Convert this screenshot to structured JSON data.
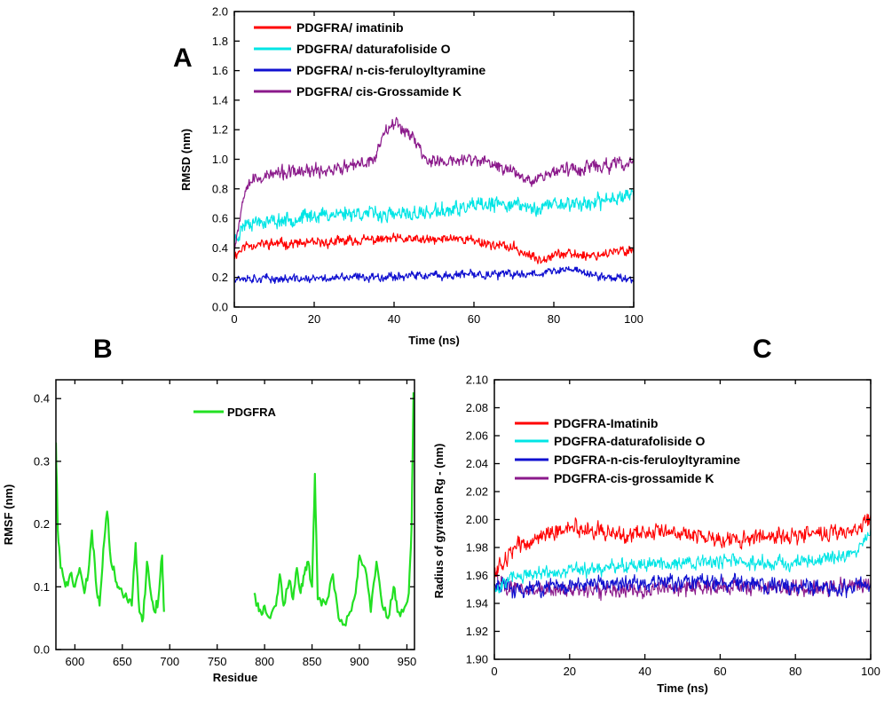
{
  "figure": {
    "panel_labels": [
      "A",
      "B",
      "C"
    ]
  },
  "chart_data": [
    {
      "panel": "A",
      "type": "line",
      "title": "",
      "xlabel": "Time (ns)",
      "ylabel": "RMSD (nm)",
      "xlim": [
        0,
        100
      ],
      "ylim": [
        0,
        2.0
      ],
      "xticks": [
        0,
        20,
        40,
        60,
        80,
        100
      ],
      "yticks": [
        0.0,
        0.2,
        0.4,
        0.6,
        0.8,
        1.0,
        1.2,
        1.4,
        1.6,
        1.8,
        2.0
      ],
      "legend_position": "top-left",
      "series": [
        {
          "name": "PDGFRA/ imatinib",
          "color": "#ff0000",
          "noise": 0.04,
          "seed": 11,
          "x": [
            0,
            3,
            10,
            20,
            30,
            40,
            50,
            55,
            60,
            65,
            70,
            73,
            76,
            80,
            90,
            100
          ],
          "y": [
            0.35,
            0.42,
            0.43,
            0.43,
            0.45,
            0.46,
            0.45,
            0.47,
            0.45,
            0.42,
            0.4,
            0.36,
            0.32,
            0.36,
            0.35,
            0.39
          ]
        },
        {
          "name": "PDGFRA/ daturafoliside O",
          "color": "#00e5e5",
          "noise": 0.06,
          "seed": 23,
          "x": [
            0,
            3,
            10,
            20,
            30,
            40,
            50,
            60,
            70,
            75,
            80,
            90,
            100
          ],
          "y": [
            0.45,
            0.58,
            0.58,
            0.62,
            0.64,
            0.62,
            0.64,
            0.68,
            0.7,
            0.66,
            0.7,
            0.7,
            0.78
          ]
        },
        {
          "name": "PDGFRA/ n-cis-feruloyltyramine",
          "color": "#1010d0",
          "noise": 0.035,
          "seed": 37,
          "x": [
            0,
            10,
            20,
            30,
            40,
            50,
            60,
            70,
            80,
            85,
            90,
            100
          ],
          "y": [
            0.2,
            0.19,
            0.19,
            0.2,
            0.21,
            0.21,
            0.22,
            0.22,
            0.24,
            0.26,
            0.21,
            0.19
          ]
        },
        {
          "name": "PDGFRA/ cis-Grossamide K",
          "color": "#8b1a8b",
          "noise": 0.055,
          "seed": 53,
          "x": [
            0,
            3,
            10,
            20,
            30,
            35,
            38,
            40,
            44,
            48,
            52,
            60,
            70,
            75,
            80,
            90,
            100
          ],
          "y": [
            0.4,
            0.85,
            0.9,
            0.92,
            0.95,
            1.0,
            1.22,
            1.25,
            1.18,
            1.0,
            0.98,
            1.0,
            0.92,
            0.86,
            0.92,
            0.95,
            0.97
          ]
        }
      ]
    },
    {
      "panel": "B",
      "type": "line",
      "title": "",
      "xlabel": "Residue",
      "ylabel": "RMSF (nm)",
      "xlim": [
        580,
        958
      ],
      "ylim": [
        0,
        0.43
      ],
      "xticks": [
        600,
        650,
        700,
        750,
        800,
        850,
        900,
        950
      ],
      "yticks": [
        0.0,
        0.1,
        0.2,
        0.3,
        0.4
      ],
      "legend_position": "top-center",
      "series": [
        {
          "name": "PDGFRA",
          "color": "#22e022",
          "noise": 0.008,
          "seed": 71,
          "segments": [
            {
              "x": [
                580,
                582,
                585,
                590,
                595,
                600,
                605,
                610,
                614,
                618,
                622,
                626,
                630,
                634,
                638,
                642,
                646,
                650,
                655,
                660,
                664,
                668,
                672,
                676,
                680,
                684,
                688,
                692,
                694
              ],
              "y": [
                0.33,
                0.19,
                0.13,
                0.1,
                0.12,
                0.1,
                0.13,
                0.09,
                0.12,
                0.19,
                0.11,
                0.07,
                0.16,
                0.22,
                0.14,
                0.12,
                0.1,
                0.09,
                0.08,
                0.07,
                0.17,
                0.06,
                0.05,
                0.14,
                0.09,
                0.06,
                0.08,
                0.15,
                0.06
              ]
            },
            {
              "x": [
                789,
                792,
                796,
                800,
                806,
                812,
                816,
                820,
                826,
                830,
                834,
                838,
                842,
                846,
                850,
                853,
                856,
                860,
                866,
                872,
                878,
                884,
                890,
                896,
                900,
                906,
                912,
                918,
                924,
                930,
                936,
                940,
                946,
                952,
                955,
                957
              ],
              "y": [
                0.09,
                0.07,
                0.06,
                0.07,
                0.05,
                0.07,
                0.12,
                0.07,
                0.11,
                0.08,
                0.13,
                0.09,
                0.12,
                0.14,
                0.1,
                0.28,
                0.08,
                0.07,
                0.08,
                0.12,
                0.05,
                0.04,
                0.06,
                0.09,
                0.15,
                0.13,
                0.06,
                0.14,
                0.07,
                0.05,
                0.1,
                0.06,
                0.06,
                0.09,
                0.2,
                0.41
              ]
            }
          ]
        }
      ]
    },
    {
      "panel": "C",
      "type": "line",
      "title": "",
      "xlabel": "Time (ns)",
      "ylabel": "Radius of gyration Rg - (nm)",
      "xlim": [
        0,
        100
      ],
      "ylim": [
        1.9,
        2.1
      ],
      "xticks": [
        0,
        20,
        40,
        60,
        80,
        100
      ],
      "yticks": [
        1.9,
        1.92,
        1.94,
        1.96,
        1.98,
        2.0,
        2.02,
        2.04,
        2.06,
        2.08,
        2.1
      ],
      "legend_position": "top-left",
      "series": [
        {
          "name": "PDGFRA-cis-grossamide K",
          "color": "#8b1a8b",
          "noise": 0.007,
          "seed": 101,
          "x": [
            0,
            5,
            20,
            40,
            60,
            80,
            95,
            100
          ],
          "y": [
            1.96,
            1.95,
            1.95,
            1.95,
            1.952,
            1.951,
            1.952,
            1.955
          ]
        },
        {
          "name": "PDGFRA-n-cis-feruloyltyramine",
          "color": "#1010d0",
          "noise": 0.007,
          "seed": 113,
          "x": [
            0,
            5,
            20,
            40,
            60,
            80,
            95,
            100
          ],
          "y": [
            1.955,
            1.95,
            1.953,
            1.955,
            1.955,
            1.952,
            1.95,
            1.955
          ]
        },
        {
          "name": "PDGFRA-daturafoliside O",
          "color": "#00e5e5",
          "noise": 0.006,
          "seed": 127,
          "x": [
            0,
            5,
            20,
            40,
            60,
            80,
            95,
            100
          ],
          "y": [
            1.95,
            1.96,
            1.963,
            1.968,
            1.97,
            1.968,
            1.975,
            1.99
          ]
        },
        {
          "name": "PDGFRA-Imatinib",
          "color": "#ff0000",
          "noise": 0.007,
          "seed": 139,
          "x": [
            0,
            5,
            15,
            20,
            30,
            40,
            50,
            60,
            70,
            80,
            90,
            95,
            100
          ],
          "y": [
            1.96,
            1.98,
            1.99,
            1.995,
            1.99,
            1.99,
            1.992,
            1.985,
            1.988,
            1.988,
            1.99,
            1.99,
            2.0
          ]
        }
      ],
      "legend_order": [
        "PDGFRA-Imatinib",
        "PDGFRA-daturafoliside O",
        "PDGFRA-n-cis-feruloyltyramine",
        "PDGFRA-cis-grossamide K"
      ]
    }
  ]
}
